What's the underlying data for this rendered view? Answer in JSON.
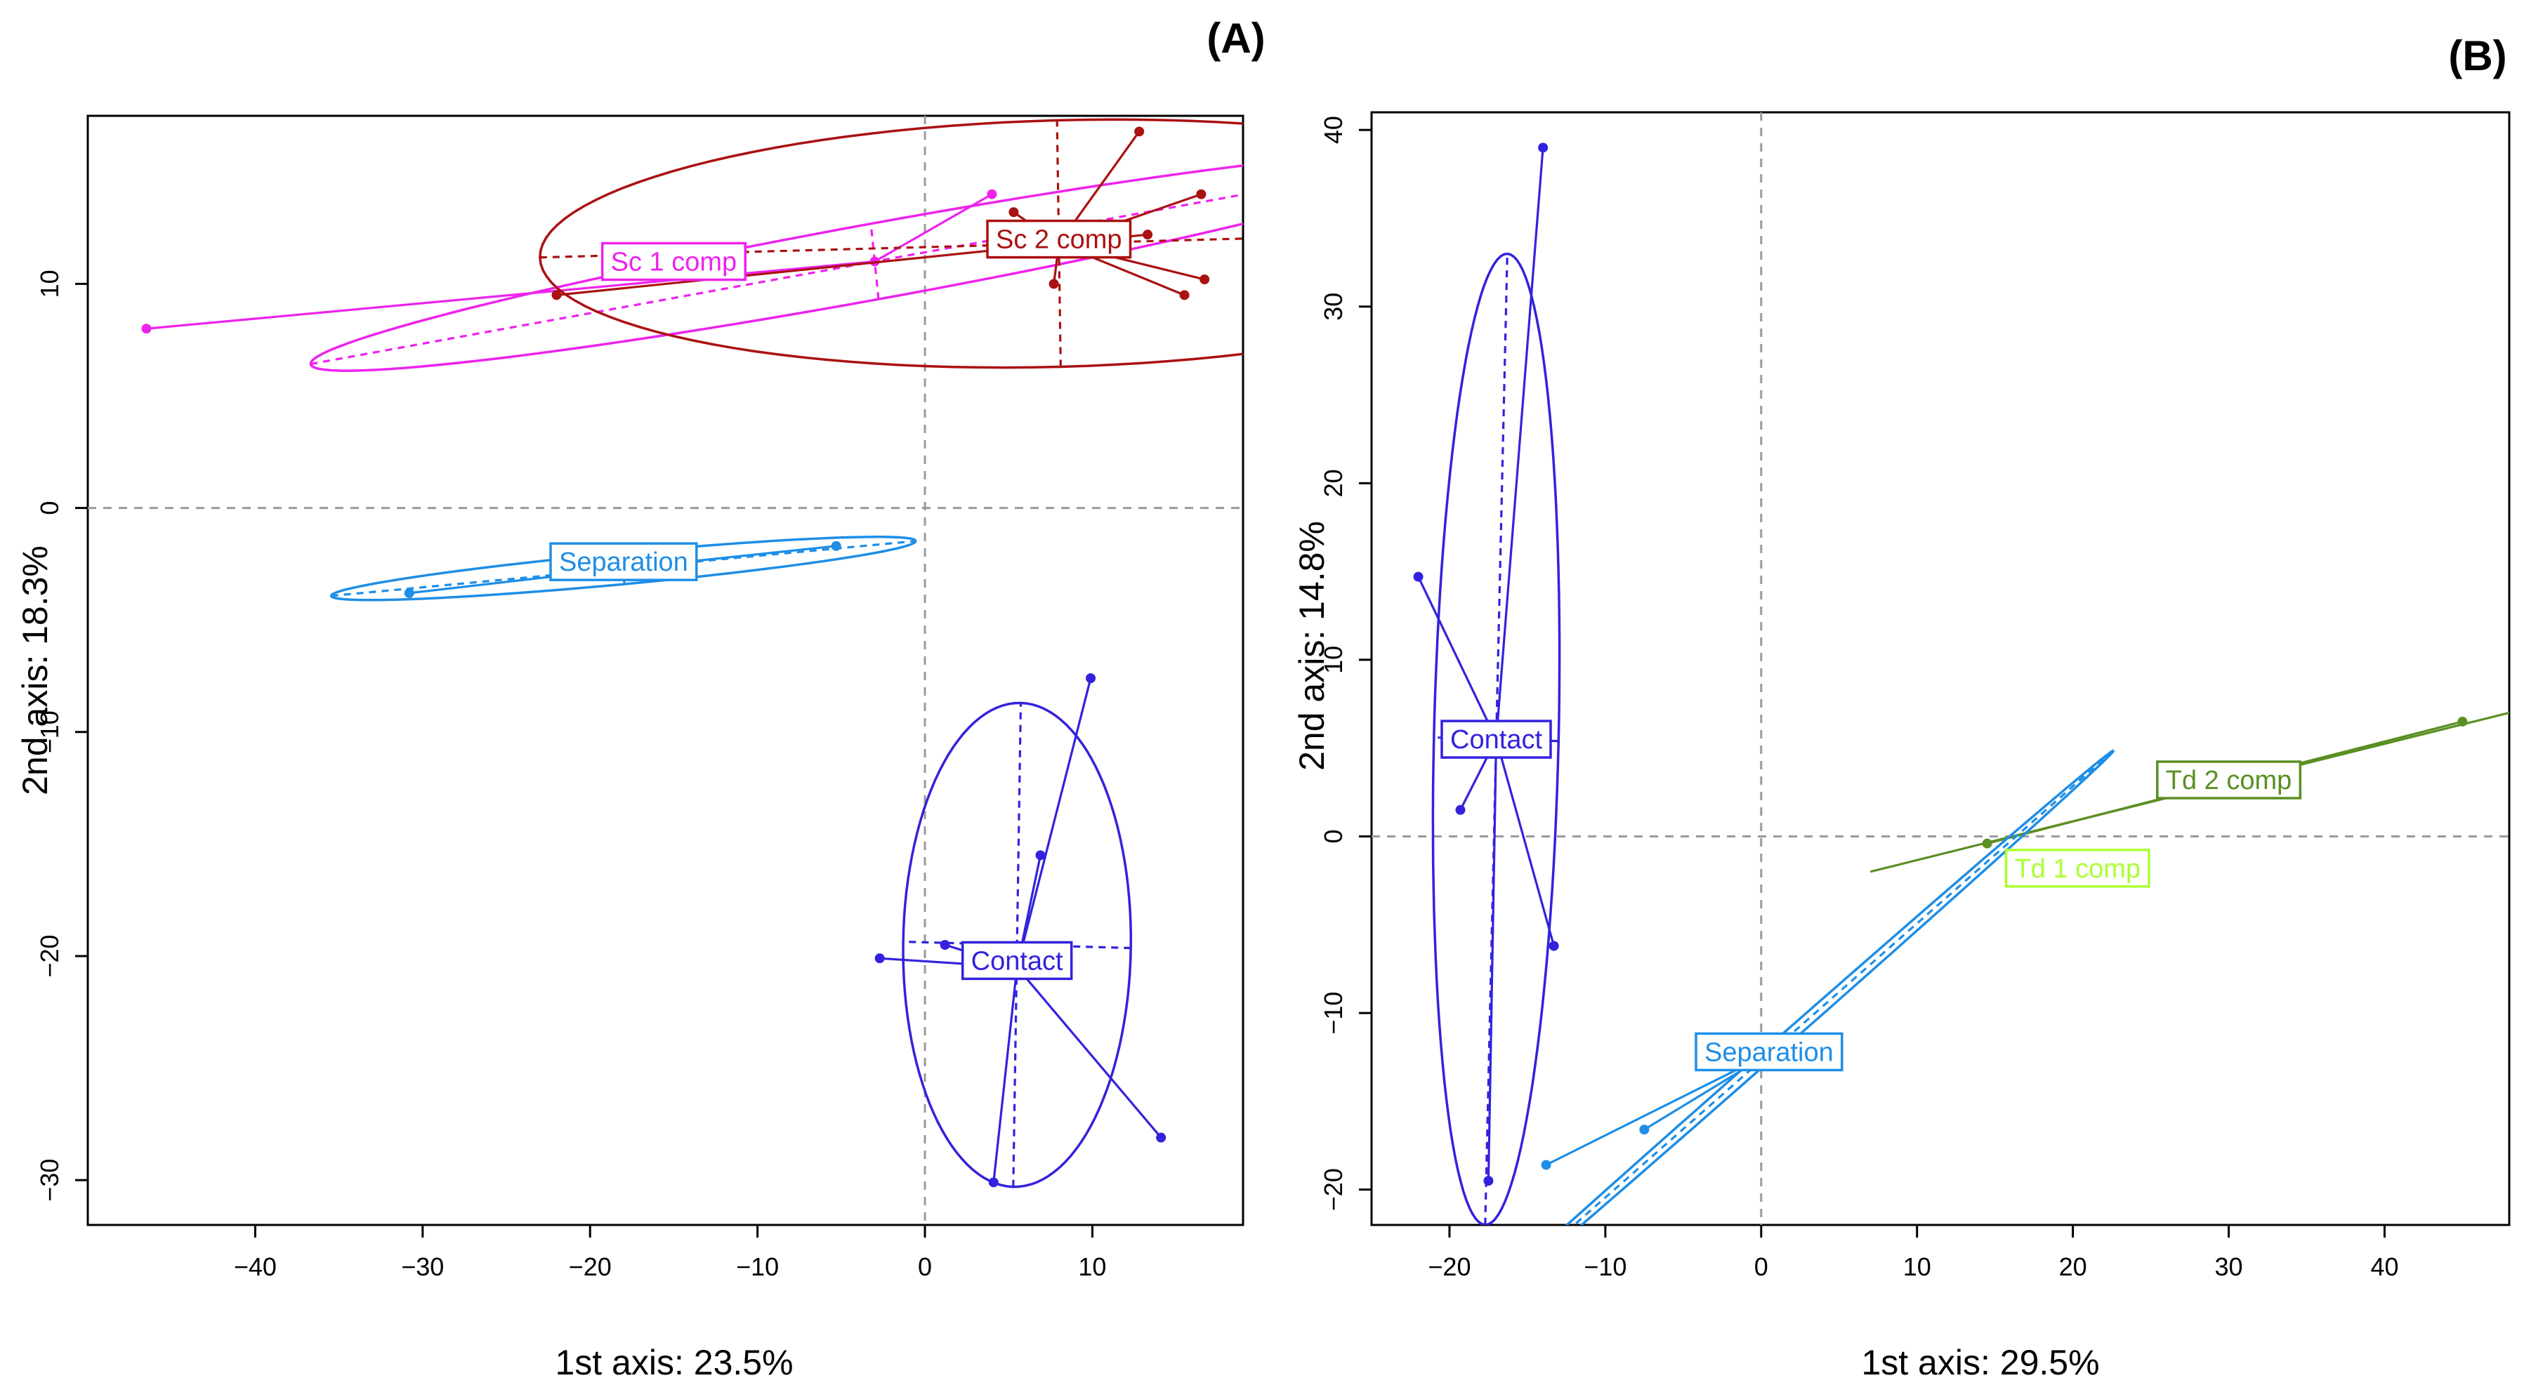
{
  "chart_data": [
    {
      "type": "scatter",
      "panel_label": "(A)",
      "xlabel": "1st axis: 23.5%",
      "ylabel": "2nd axis: 18.3%",
      "xlim": [
        -50,
        19
      ],
      "ylim": [
        -32.0,
        17.5
      ],
      "xticks": [
        -40,
        -30,
        -20,
        -10,
        0,
        10
      ],
      "yticks": [
        -30,
        -20,
        -10,
        0,
        10
      ],
      "xtick_labels": [
        "−40",
        "−30",
        "−20",
        "−10",
        "0",
        "10"
      ],
      "ytick_labels": [
        "−30",
        "−20",
        "−10",
        "0",
        "10"
      ],
      "groups": [
        {
          "name": "Sc 1 comp",
          "color": "#ee22ee",
          "center": [
            -3,
            11
          ],
          "label_pos": [
            -15,
            11
          ],
          "ellipse": {
            "cx": -3,
            "cy": 11,
            "a": 34,
            "b": 1.7,
            "angle": 0.135
          },
          "points": [
            [
              -46.5,
              8
            ],
            [
              4,
              14
            ],
            [
              -3,
              11
            ]
          ]
        },
        {
          "name": "Sc 2 comp",
          "color": "#aa1111",
          "center": [
            8,
            11.8
          ],
          "label_pos": [
            8,
            12
          ],
          "ellipse": {
            "cx": 8,
            "cy": 11.8,
            "a": 31,
            "b": 5.5,
            "angle": 0.02
          },
          "points": [
            [
              12.8,
              16.8
            ],
            [
              16.5,
              14
            ],
            [
              5.3,
              13.2
            ],
            [
              13.3,
              12.2
            ],
            [
              7.7,
              10
            ],
            [
              15.5,
              9.5
            ],
            [
              16.7,
              10.2
            ],
            [
              -22,
              9.5
            ]
          ]
        },
        {
          "name": "Separation",
          "color": "#1e8ee6",
          "center": [
            -18,
            -2.7
          ],
          "label_pos": [
            -18,
            -2.4
          ],
          "ellipse": {
            "cx": -18,
            "cy": -2.7,
            "a": 17.5,
            "b": 0.7,
            "angle": 0.07
          },
          "points": [
            [
              -30.8,
              -3.8
            ],
            [
              -5.3,
              -1.7
            ]
          ]
        },
        {
          "name": "Contact",
          "color": "#3322dd",
          "center": [
            5.5,
            -20.5
          ],
          "label_pos": [
            5.5,
            -20.2
          ],
          "ellipse": {
            "cx": 5.5,
            "cy": -19.5,
            "a": 10.8,
            "b": 6.8,
            "angle": 1.55
          },
          "points": [
            [
              9.9,
              -7.6
            ],
            [
              6.9,
              -15.5
            ],
            [
              1.2,
              -19.5
            ],
            [
              -2.7,
              -20.1
            ],
            [
              14.1,
              -28.1
            ],
            [
              4.1,
              -30.1
            ]
          ]
        }
      ]
    },
    {
      "type": "scatter",
      "panel_label": "(B)",
      "xlabel": "1st axis: 29.5%",
      "ylabel": "2nd axis: 14.8%",
      "xlim": [
        -25,
        48
      ],
      "ylim": [
        -22,
        41
      ],
      "xticks": [
        -20,
        -10,
        0,
        10,
        20,
        30,
        40
      ],
      "yticks": [
        -20,
        -10,
        0,
        10,
        20,
        30,
        40
      ],
      "xtick_labels": [
        "−20",
        "−10",
        "0",
        "10",
        "20",
        "30",
        "40"
      ],
      "ytick_labels": [
        "−20",
        "−10",
        "0",
        "10",
        "20",
        "30",
        "40"
      ],
      "groups": [
        {
          "name": "Contact",
          "color": "#3322dd",
          "center": [
            -17,
            5.5
          ],
          "label_pos": [
            -17,
            5.5
          ],
          "ellipse": {
            "cx": -17,
            "cy": 5.5,
            "a": 27.5,
            "b": 4.0,
            "angle": 1.545
          },
          "points": [
            [
              -14,
              39
            ],
            [
              -22,
              14.7
            ],
            [
              -19.3,
              1.5
            ],
            [
              -13.3,
              -6.2
            ],
            [
              -17.5,
              -19.5
            ]
          ]
        },
        {
          "name": "Td 2 comp",
          "color": "#5a8f22",
          "center": [
            29.5,
            3.0
          ],
          "label_pos": [
            30,
            3.2
          ],
          "ellipse": null,
          "line": [
            [
              7,
              -2
            ],
            [
              48,
              7
            ]
          ],
          "points": [
            [
              45,
              6.5
            ],
            [
              14.5,
              -0.4
            ]
          ]
        },
        {
          "name": "Td 1 comp",
          "color": "#aaff33",
          "center": [
            20,
            -1.8
          ],
          "label_pos": [
            20.3,
            -1.8
          ],
          "ellipse": null,
          "points": []
        },
        {
          "name": "Separation",
          "color": "#1e8ee6",
          "center": [
            0.5,
            -12.3
          ],
          "label_pos": [
            0.5,
            -12.2
          ],
          "ellipse": {
            "cx": 0.5,
            "cy": -12.3,
            "a": 28,
            "b": 0.35,
            "angle": 0.66
          },
          "points": [
            [
              -7.5,
              -16.6
            ],
            [
              -13.8,
              -18.6
            ]
          ]
        }
      ]
    }
  ]
}
